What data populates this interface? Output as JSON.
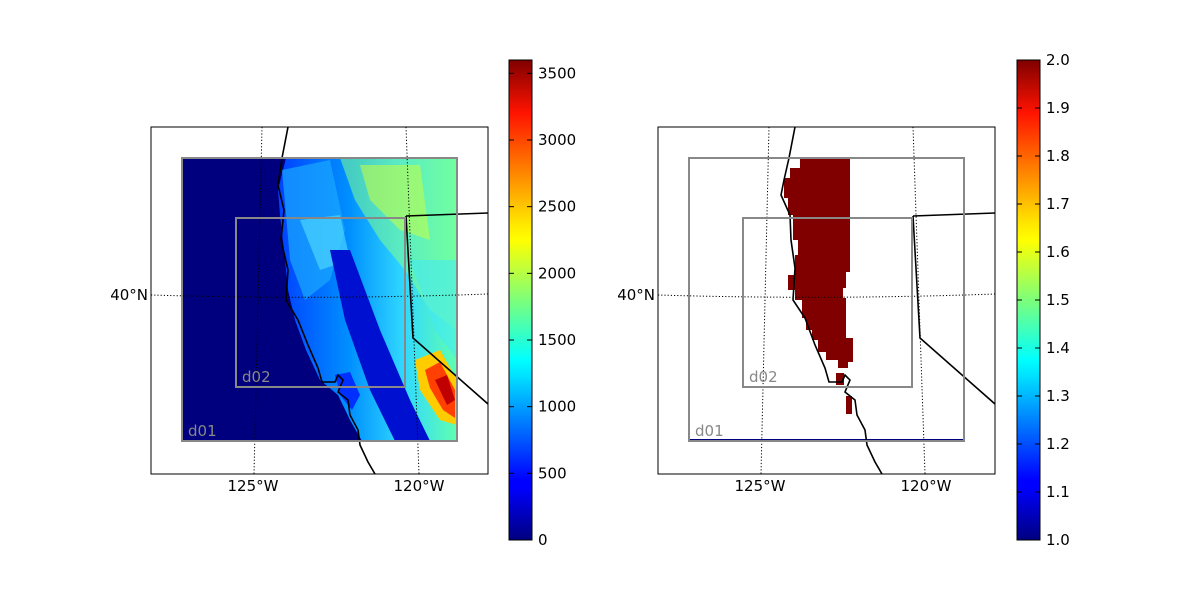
{
  "figure": {
    "panels": [
      {
        "id": "left",
        "description_field": "terrain-height",
        "lat_label": "40°N",
        "lon_labels": [
          "125°W",
          "120°W"
        ],
        "domain_labels": [
          "d01",
          "d02"
        ],
        "colorbar": {
          "colormap": "jet",
          "min": 0,
          "max": 3600,
          "tick_labels": [
            "0",
            "500",
            "1000",
            "1500",
            "2000",
            "2500",
            "3000",
            "3500"
          ]
        }
      },
      {
        "id": "right",
        "description_field": "binary-mask",
        "lat_label": "40°N",
        "lon_labels": [
          "125°W",
          "120°W"
        ],
        "domain_labels": [
          "d01",
          "d02"
        ],
        "colorbar": {
          "colormap": "jet",
          "min": 1.0,
          "max": 2.0,
          "tick_labels": [
            "1.0",
            "1.1",
            "1.2",
            "1.3",
            "1.4",
            "1.5",
            "1.6",
            "1.7",
            "1.8",
            "1.9",
            "2.0"
          ]
        }
      }
    ],
    "colors": {
      "domain_box": "#888888",
      "coastline": "#000000",
      "mask_fill": "#800000",
      "ocean_fill": "#00007f"
    }
  }
}
